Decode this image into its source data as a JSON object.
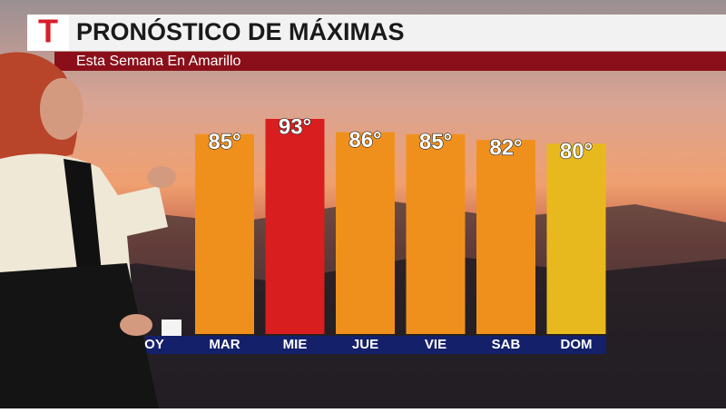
{
  "header": {
    "logo": "T",
    "title": "PRONÓSTICO DE MÁXIMAS",
    "subtitle": "Esta Semana En Amarillo"
  },
  "chart_data": {
    "type": "bar",
    "categories": [
      "OY",
      "MAR",
      "MIE",
      "JUE",
      "VIE",
      "SAB",
      "DOM"
    ],
    "values": [
      null,
      85,
      93,
      86,
      85,
      82,
      80
    ],
    "value_labels": [
      null,
      "85°",
      "93°",
      "86°",
      "85°",
      "82°",
      "80°"
    ],
    "colors": [
      null,
      "#f0901c",
      "#d81e1e",
      "#f0901c",
      "#f0901c",
      "#f0901c",
      "#e8b91e"
    ]
  }
}
